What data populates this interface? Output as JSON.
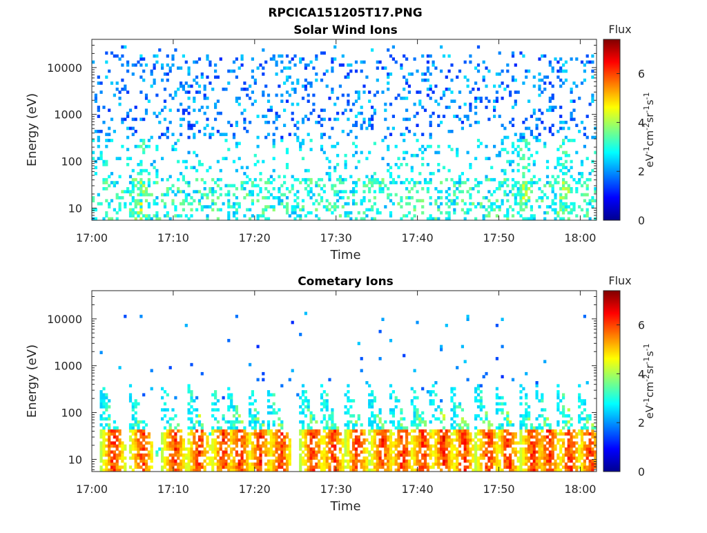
{
  "figure_title": "RPCICA151205T17.PNG",
  "chart_data": [
    {
      "type": "heatmap",
      "title": "Solar Wind Ions",
      "xlabel": "Time",
      "ylabel": "Energy (eV)",
      "x_range": [
        "17:00",
        "18:02"
      ],
      "x_ticks": [
        "17:00",
        "17:10",
        "17:20",
        "17:30",
        "17:40",
        "17:50",
        "18:00"
      ],
      "y_scale": "log",
      "ylim": [
        5.5,
        40000
      ],
      "y_ticks": [
        {
          "value": 10,
          "label": "10"
        },
        {
          "value": 100,
          "label": "100"
        },
        {
          "value": 1000,
          "label": "1000"
        },
        {
          "value": 10000,
          "label": "10000"
        }
      ],
      "colorbar": {
        "title": "Flux",
        "unit_label": "eV-1cm-2sr-1s-1",
        "unit_parts": [
          {
            "base": "eV",
            "sup": "-1"
          },
          {
            "base": "cm",
            "sup": "-2"
          },
          {
            "base": "sr",
            "sup": "-1"
          },
          {
            "base": "s",
            "sup": "-1"
          }
        ],
        "range": [
          0,
          7.4
        ],
        "ticks": [
          "0",
          "2",
          "4",
          "6"
        ],
        "colormap": "jet"
      },
      "pattern": {
        "low_band": {
          "energy": [
            5.5,
            45
          ],
          "flux": [
            2.2,
            3.8
          ],
          "peak_flux": 5.0
        },
        "scatter": {
          "energy": [
            45,
            30000
          ],
          "flux": [
            1.2,
            2.6
          ]
        },
        "events_min": [
          6,
          53,
          58
        ]
      }
    },
    {
      "type": "heatmap",
      "title": "Cometary Ions",
      "xlabel": "Time",
      "ylabel": "Energy (eV)",
      "x_range": [
        "17:00",
        "18:02"
      ],
      "x_ticks": [
        "17:00",
        "17:10",
        "17:20",
        "17:30",
        "17:40",
        "17:50",
        "18:00"
      ],
      "y_scale": "log",
      "ylim": [
        5.5,
        40000
      ],
      "y_ticks": [
        {
          "value": 10,
          "label": "10"
        },
        {
          "value": 100,
          "label": "100"
        },
        {
          "value": 1000,
          "label": "1000"
        },
        {
          "value": 10000,
          "label": "10000"
        }
      ],
      "colorbar": {
        "title": "Flux",
        "unit_label": "eV-1cm-2sr-1s-1",
        "unit_parts": [
          {
            "base": "eV",
            "sup": "-1"
          },
          {
            "base": "cm",
            "sup": "-2"
          },
          {
            "base": "sr",
            "sup": "-1"
          },
          {
            "base": "s",
            "sup": "-1"
          }
        ],
        "range": [
          0,
          7.4
        ],
        "ticks": [
          "0",
          "2",
          "4",
          "6"
        ],
        "colormap": "jet"
      },
      "pattern": {
        "dispersion_events_min": [
          1.5,
          5,
          9,
          12,
          15,
          17,
          19.5,
          22,
          26,
          28.5,
          31.5,
          34.5,
          37,
          39.5,
          42,
          44.5,
          47.5,
          50,
          53,
          55,
          57.5,
          60
        ],
        "low_band": {
          "energy": [
            5.5,
            45
          ],
          "flux": [
            3.8,
            6.8
          ]
        },
        "high_energy_scatter": {
          "energy": [
            150,
            15000
          ],
          "flux": [
            1.2,
            2.4
          ]
        }
      }
    }
  ]
}
